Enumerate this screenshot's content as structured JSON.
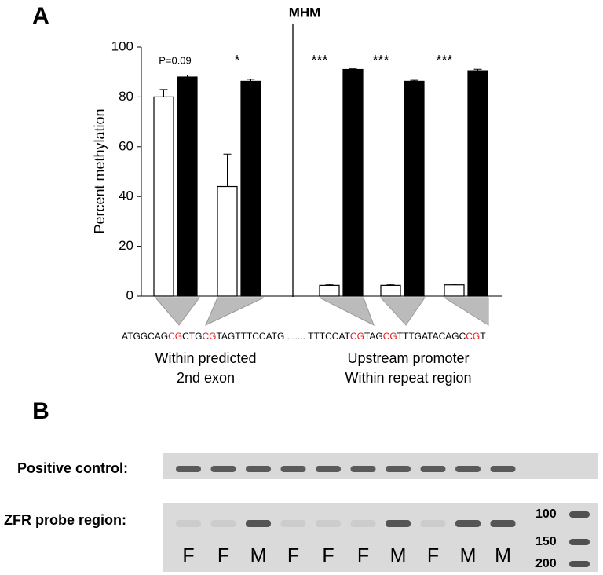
{
  "panel_a": "A",
  "chart_data": {
    "type": "bar",
    "divider_label": "MHM",
    "ylabel": "Percent methylation",
    "categories": [
      null,
      null,
      null,
      null,
      null
    ],
    "ylim": [
      0,
      100
    ],
    "yticks": [
      0,
      20,
      40,
      60,
      80,
      100
    ],
    "series": [
      {
        "color": "#ffffff",
        "values": [
          80,
          44,
          4.3,
          4.3,
          4.5
        ],
        "errors": [
          3,
          13,
          0.4,
          0.4,
          0.3
        ]
      },
      {
        "color": "#000000",
        "values": [
          88,
          86.3,
          91,
          86.3,
          90.5
        ],
        "errors": [
          0.8,
          0.8,
          0.4,
          0.4,
          0.6
        ]
      }
    ],
    "annotations": [
      "P=0.09",
      "*",
      "***",
      "***",
      "***"
    ]
  },
  "sequence": {
    "highlight_color": "#e02020",
    "segments": [
      {
        "text": "ATGGCAG",
        "highlight": false
      },
      {
        "text": "CG",
        "highlight": true
      },
      {
        "text": "CTG",
        "highlight": false
      },
      {
        "text": "CG",
        "highlight": true
      },
      {
        "text": "TAGTTTCCATG ....... TTTCCAT",
        "highlight": false
      },
      {
        "text": "CG",
        "highlight": true
      },
      {
        "text": "TAG",
        "highlight": false
      },
      {
        "text": "CG",
        "highlight": true
      },
      {
        "text": "TTTGATACAGC",
        "highlight": false
      },
      {
        "text": "CG",
        "highlight": true
      },
      {
        "text": "T",
        "highlight": false
      }
    ]
  },
  "regions": [
    [
      "Within predicted",
      "2nd exon"
    ],
    [
      "Upstream promoter",
      "Within repeat region"
    ]
  ],
  "panel_b": "B",
  "gel": {
    "rows": [
      "Positive control:",
      "ZFR probe region:"
    ],
    "lane_labels": [
      "F",
      "F",
      "M",
      "F",
      "F",
      "F",
      "M",
      "F",
      "M",
      "M"
    ],
    "ladder_labels": [
      "100",
      "150",
      "200"
    ]
  }
}
